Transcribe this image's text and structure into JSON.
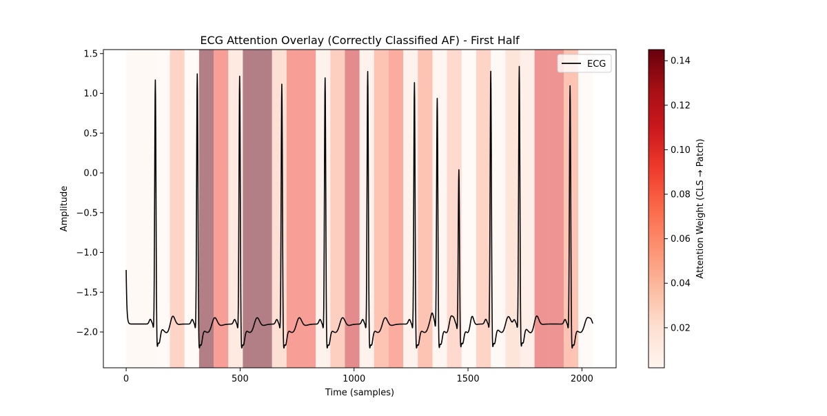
{
  "chart_data": {
    "type": "line",
    "title": "ECG Attention Overlay (Correctly Classified AF) - First Half",
    "xlabel": "Time (samples)",
    "ylabel": "Amplitude",
    "xlim": [
      -100,
      2150
    ],
    "ylim": [
      -2.45,
      1.55
    ],
    "xticks": [
      0,
      500,
      1000,
      1500,
      2000
    ],
    "xtick_labels": [
      "0",
      "500",
      "1000",
      "1500",
      "2000"
    ],
    "yticks": [
      1.5,
      1.0,
      0.5,
      0.0,
      -0.5,
      -1.0,
      -1.5,
      -2.0
    ],
    "ytick_labels": [
      "1.5",
      "1.0",
      "0.5",
      "0.0",
      "−0.5",
      "−1.0",
      "−1.5",
      "−2.0"
    ],
    "legend": {
      "position": "top-right",
      "entries": [
        {
          "label": "ECG",
          "color": "#000000"
        }
      ]
    },
    "grid": false,
    "patch_size_samples": 64,
    "attention_weights": [
      0.004,
      0.003,
      0.002,
      0.045,
      0.002,
      0.145,
      0.09,
      0.025,
      0.145,
      0.145,
      0.035,
      0.09,
      0.09,
      0.015,
      0.05,
      0.11,
      0.015,
      0.06,
      0.08,
      0.015,
      0.06,
      0.01,
      0.04,
      0.002,
      0.045,
      0.004,
      0.03,
      0.02,
      0.1,
      0.1,
      0.06,
      0.002
    ],
    "colorbar": {
      "label": "Attention Weight (CLS → Patch)",
      "range": [
        0.002,
        0.145
      ],
      "ticks": [
        0.02,
        0.04,
        0.06,
        0.08,
        0.1,
        0.12,
        0.14
      ],
      "tick_labels": [
        "0.02",
        "0.04",
        "0.06",
        "0.08",
        "0.10",
        "0.12",
        "0.14"
      ],
      "colormap": [
        "#fff5f0",
        "#fee0d2",
        "#fcbba1",
        "#fc9272",
        "#fb6a4a",
        "#ef3b2c",
        "#cb181d",
        "#a50f15",
        "#67000d"
      ]
    },
    "series": [
      {
        "name": "ECG",
        "color": "#000000",
        "beats": [
          {
            "r": 128,
            "peak": 1.2
          },
          {
            "r": 312,
            "peak": 1.29
          },
          {
            "r": 498,
            "peak": 1.26
          },
          {
            "r": 683,
            "peak": 1.16
          },
          {
            "r": 873,
            "peak": 1.24
          },
          {
            "r": 1060,
            "peak": 1.32
          },
          {
            "r": 1265,
            "peak": 1.18
          },
          {
            "r": 1365,
            "peak": 0.98
          },
          {
            "r": 1460,
            "peak": 0.07
          },
          {
            "r": 1600,
            "peak": 1.31
          },
          {
            "r": 1725,
            "peak": 1.37
          },
          {
            "r": 1948,
            "peak": 1.14
          }
        ],
        "start_value": -1.22,
        "end_value": -1.85,
        "baseline": -1.9,
        "x_end": 2048
      }
    ]
  }
}
